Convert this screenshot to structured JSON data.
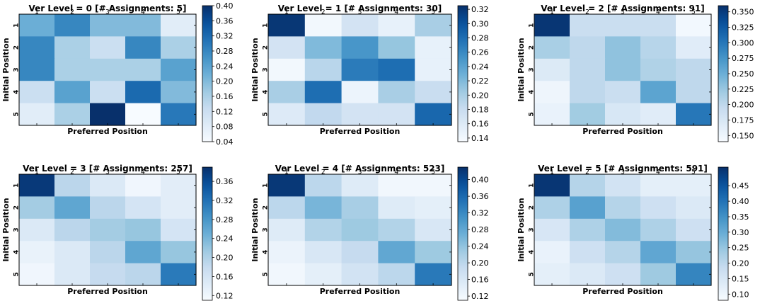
{
  "chart_data": [
    {
      "type": "heatmap",
      "title": "Ver Level = 0 [# Assignments: 5]",
      "xlabel": "Preferred Position",
      "ylabel": "Initial Position",
      "x_categories": [
        "1",
        "2",
        "3",
        "4",
        "5"
      ],
      "y_categories": [
        "1",
        "2",
        "3",
        "4",
        "5"
      ],
      "values": [
        [
          0.22,
          0.28,
          0.2,
          0.2,
          0.08
        ],
        [
          0.28,
          0.16,
          0.12,
          0.28,
          0.16
        ],
        [
          0.28,
          0.16,
          0.16,
          0.16,
          0.24
        ],
        [
          0.12,
          0.24,
          0.12,
          0.32,
          0.2
        ],
        [
          0.08,
          0.16,
          0.4,
          0.04,
          0.3
        ]
      ],
      "colorbar": {
        "min": 0.04,
        "max": 0.4,
        "ticks": [
          "0.40",
          "0.36",
          "0.32",
          "0.28",
          "0.24",
          "0.20",
          "0.16",
          "0.12",
          "0.08",
          "0.04"
        ]
      }
    },
    {
      "type": "heatmap",
      "title": "Ver Level = 1 [# Assignments: 30]",
      "xlabel": "Preferred Position",
      "ylabel": "Initial Position",
      "x_categories": [
        "1",
        "2",
        "3",
        "4",
        "5"
      ],
      "y_categories": [
        "1",
        "2",
        "3",
        "4",
        "5"
      ],
      "values": [
        [
          0.32,
          0.14,
          0.17,
          0.15,
          0.2
        ],
        [
          0.17,
          0.22,
          0.25,
          0.21,
          0.15
        ],
        [
          0.14,
          0.19,
          0.27,
          0.28,
          0.15
        ],
        [
          0.2,
          0.28,
          0.145,
          0.2,
          0.18
        ],
        [
          0.16,
          0.185,
          0.17,
          0.17,
          0.285
        ]
      ],
      "colorbar": {
        "min": 0.135,
        "max": 0.325,
        "ticks": [
          "0.32",
          "0.30",
          "0.28",
          "0.26",
          "0.24",
          "0.22",
          "0.20",
          "0.18",
          "0.16",
          "0.14"
        ]
      }
    },
    {
      "type": "heatmap",
      "title": "Ver Level = 2 [# Assignments: 91]",
      "xlabel": "Preferred Position",
      "ylabel": "Initial Position",
      "x_categories": [
        "1",
        "2",
        "3",
        "4",
        "5"
      ],
      "y_categories": [
        "1",
        "2",
        "3",
        "4",
        "5"
      ],
      "values": [
        [
          0.355,
          0.19,
          0.19,
          0.19,
          0.145
        ],
        [
          0.215,
          0.2,
          0.23,
          0.205,
          0.165
        ],
        [
          0.17,
          0.2,
          0.23,
          0.21,
          0.2
        ],
        [
          0.15,
          0.2,
          0.19,
          0.26,
          0.2
        ],
        [
          0.155,
          0.22,
          0.175,
          0.165,
          0.3
        ]
      ],
      "colorbar": {
        "min": 0.14,
        "max": 0.36,
        "ticks": [
          "0.350",
          "0.325",
          "0.300",
          "0.275",
          "0.250",
          "0.225",
          "0.200",
          "0.175",
          "0.150"
        ]
      }
    },
    {
      "type": "heatmap",
      "title": "Ver Level = 3 [# Assignments: 257]",
      "xlabel": "Preferred Position",
      "ylabel": "Initial Position",
      "x_categories": [
        "1",
        "2",
        "3",
        "4",
        "5"
      ],
      "y_categories": [
        "1",
        "2",
        "3",
        "4",
        "5"
      ],
      "values": [
        [
          0.38,
          0.19,
          0.15,
          0.12,
          0.14
        ],
        [
          0.21,
          0.26,
          0.19,
          0.16,
          0.14
        ],
        [
          0.15,
          0.19,
          0.21,
          0.22,
          0.16
        ],
        [
          0.13,
          0.15,
          0.19,
          0.26,
          0.22
        ],
        [
          0.12,
          0.15,
          0.18,
          0.19,
          0.31
        ]
      ],
      "colorbar": {
        "min": 0.11,
        "max": 0.39,
        "ticks": [
          "0.36",
          "0.32",
          "0.28",
          "0.24",
          "0.20",
          "0.16",
          "0.12"
        ]
      }
    },
    {
      "type": "heatmap",
      "title": "Ver Level = 4 [# Assignments: 523]",
      "xlabel": "Preferred Position",
      "ylabel": "Initial Position",
      "x_categories": [
        "1",
        "2",
        "3",
        "4",
        "5"
      ],
      "y_categories": [
        "1",
        "2",
        "3",
        "4",
        "5"
      ],
      "values": [
        [
          0.42,
          0.2,
          0.15,
          0.12,
          0.12
        ],
        [
          0.2,
          0.26,
          0.22,
          0.15,
          0.14
        ],
        [
          0.15,
          0.21,
          0.23,
          0.21,
          0.16
        ],
        [
          0.13,
          0.16,
          0.19,
          0.28,
          0.23
        ],
        [
          0.12,
          0.14,
          0.17,
          0.2,
          0.34
        ]
      ],
      "colorbar": {
        "min": 0.11,
        "max": 0.43,
        "ticks": [
          "0.40",
          "0.36",
          "0.32",
          "0.28",
          "0.24",
          "0.20",
          "0.16",
          "0.12"
        ]
      }
    },
    {
      "type": "heatmap",
      "title": "Ver Level = 5 [# Assignments: 591]",
      "xlabel": "Preferred Position",
      "ylabel": "Initial Position",
      "x_categories": [
        "1",
        "2",
        "3",
        "4",
        "5"
      ],
      "y_categories": [
        "1",
        "2",
        "3",
        "4",
        "5"
      ],
      "values": [
        [
          0.5,
          0.21,
          0.16,
          0.12,
          0.12
        ],
        [
          0.22,
          0.32,
          0.21,
          0.17,
          0.14
        ],
        [
          0.15,
          0.22,
          0.27,
          0.22,
          0.17
        ],
        [
          0.11,
          0.17,
          0.21,
          0.31,
          0.25
        ],
        [
          0.12,
          0.14,
          0.17,
          0.24,
          0.37
        ]
      ],
      "colorbar": {
        "min": 0.08,
        "max": 0.51,
        "ticks": [
          "0.45",
          "0.40",
          "0.35",
          "0.30",
          "0.25",
          "0.20",
          "0.15",
          "0.10"
        ]
      }
    }
  ]
}
